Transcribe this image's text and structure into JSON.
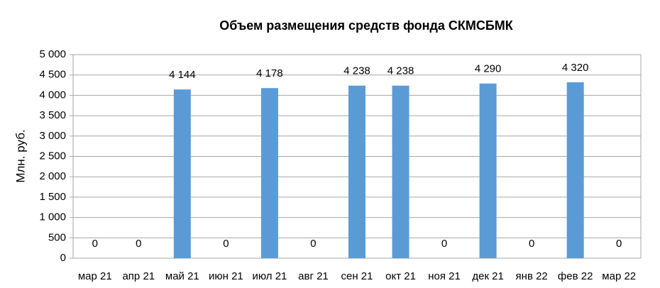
{
  "chart_data": {
    "type": "bar",
    "title": "Объем размещения средств фонда СКМСБМК",
    "y_label": "Млн. руб.",
    "categories": [
      "мар 21",
      "апр 21",
      "май 21",
      "июн 21",
      "июл 21",
      "авг 21",
      "сен 21",
      "окт 21",
      "ноя 21",
      "дек 21",
      "янв 22",
      "фев 22",
      "мар 22"
    ],
    "values": [
      0,
      0,
      4144,
      0,
      4178,
      0,
      4238,
      4238,
      0,
      4290,
      0,
      4320,
      0
    ],
    "value_labels": [
      "0",
      "0",
      "4 144",
      "0",
      "4 178",
      "0",
      "4 238",
      "4 238",
      "0",
      "4 290",
      "0",
      "4 320",
      "0"
    ],
    "color": "#5b9bd5",
    "ylim": [
      0,
      5000
    ],
    "yticks": [
      0,
      500,
      {
        "value": 1000,
        "label": "1 000"
      },
      {
        "value": 1500,
        "label": "1 500"
      },
      {
        "value": 2000,
        "label": "2 000"
      },
      {
        "value": 2500,
        "label": "2 500"
      },
      {
        "value": 3000,
        "label": "3 000"
      },
      {
        "value": 3500,
        "label": "3 500"
      },
      {
        "value": 4000,
        "label": "4 000"
      },
      {
        "value": 4500,
        "label": "4 500"
      },
      {
        "value": 5000,
        "label": "5 000"
      }
    ],
    "grid": true
  }
}
